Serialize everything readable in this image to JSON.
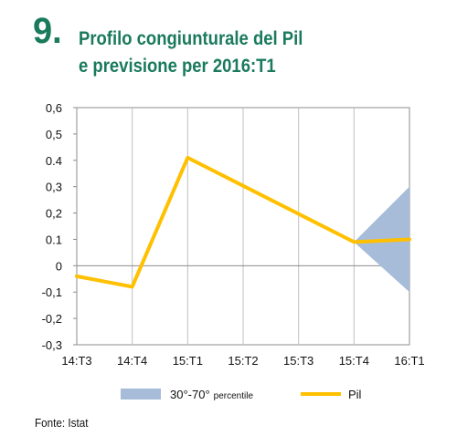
{
  "title": {
    "number": "9.",
    "line1": "Profilo congiunturale del Pil",
    "line2": "e previsione per 2016:T1"
  },
  "source": "Fonte: Istat",
  "colors": {
    "title": "#1a7a5c",
    "line": "#ffc000",
    "band": "#a6bcd9",
    "axis": "#8c8c8c"
  },
  "chart_data": {
    "type": "line",
    "categories": [
      "14:T3",
      "14:T4",
      "15:T1",
      "15:T2",
      "15:T3",
      "15:T4",
      "16:T1"
    ],
    "y_tick_labels": [
      "0,6",
      "0,5",
      "0.4",
      "0,3",
      "0,2",
      "0.1",
      "0",
      "-0,1",
      "-0,2",
      "-0,3"
    ],
    "ylim": [
      -0.3,
      0.6
    ],
    "grid": "vertical",
    "legend_position": "bottom",
    "series": [
      {
        "name": "Pil",
        "type": "line",
        "values": [
          -0.04,
          -0.08,
          0.41,
          null,
          null,
          0.09,
          0.1
        ]
      },
      {
        "name": "30°-70°",
        "name_suffix": "percentile",
        "type": "area-band",
        "x": [
          "15:T4",
          "16:T1"
        ],
        "lower": [
          0.09,
          -0.1
        ],
        "upper": [
          0.09,
          0.3
        ]
      }
    ]
  }
}
